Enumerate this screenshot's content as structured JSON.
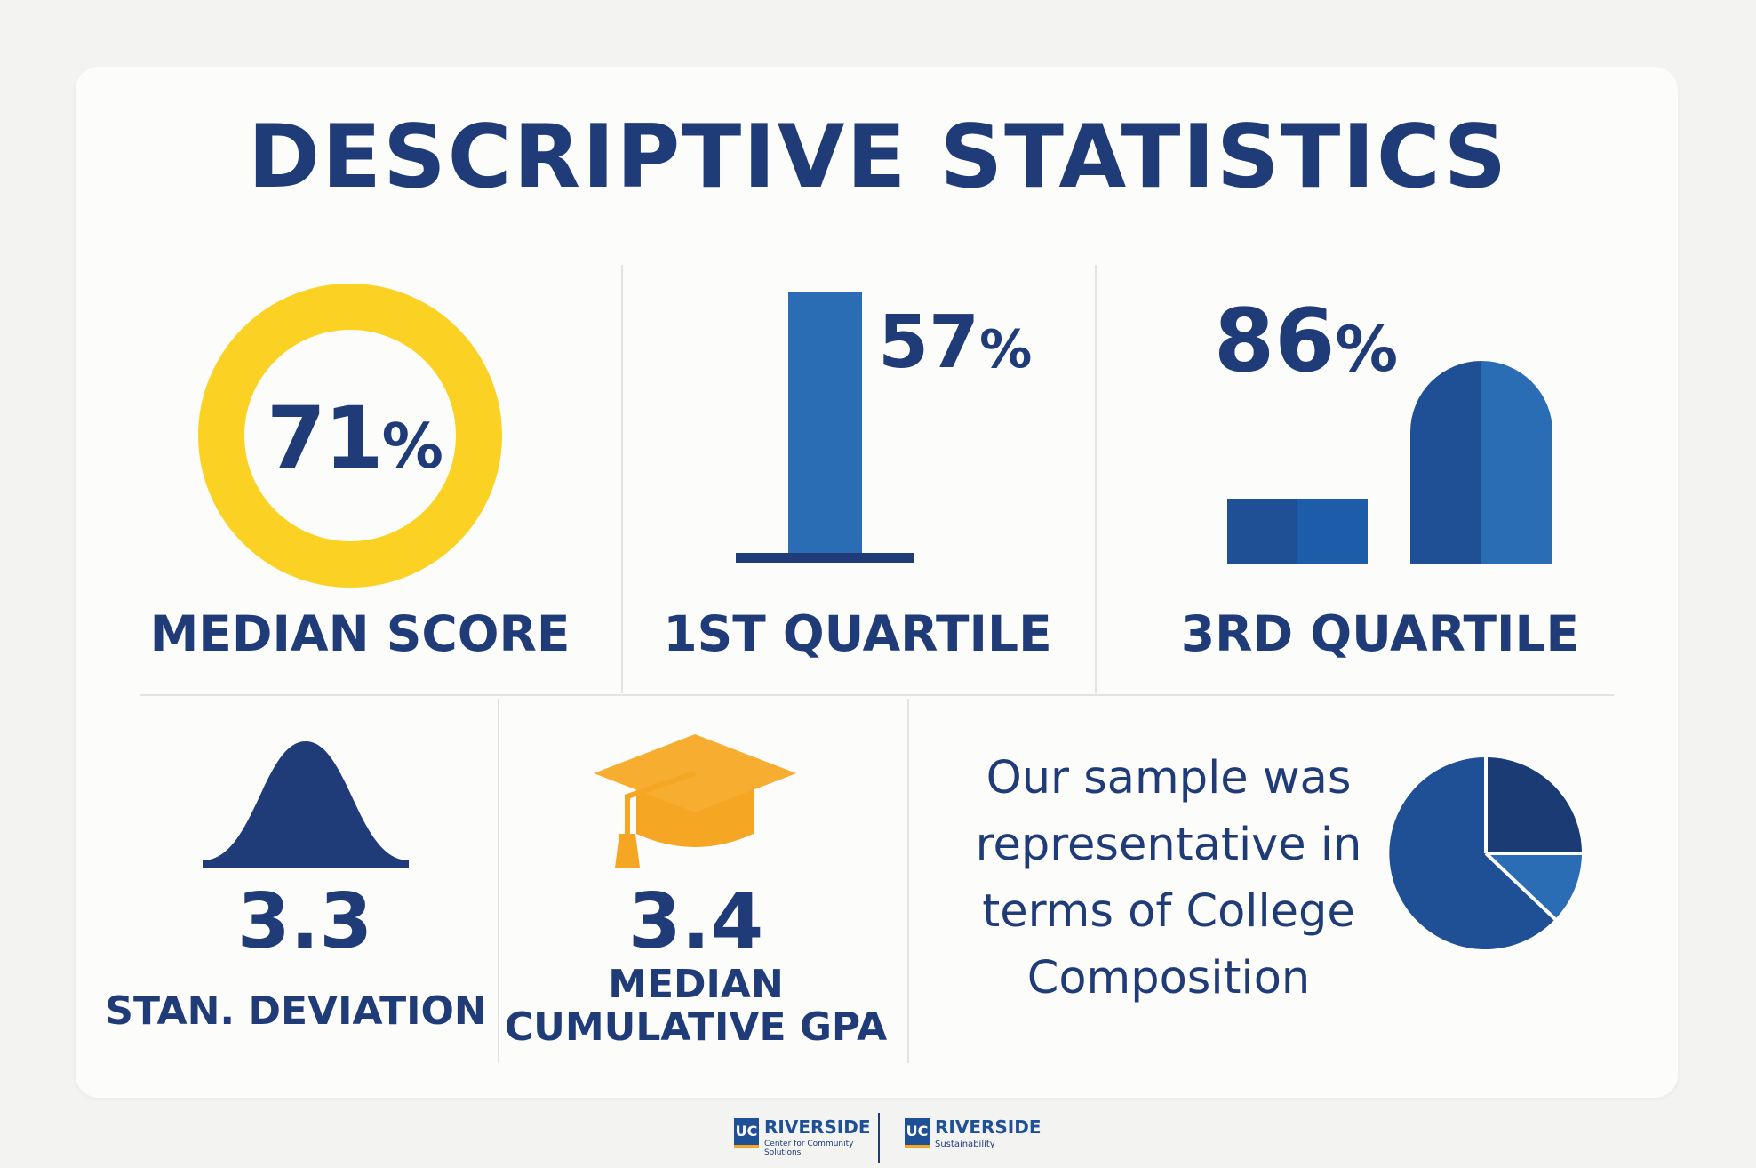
{
  "page": {
    "title": "DESCRIPTIVE STATISTICS"
  },
  "stats": {
    "median_score": {
      "value_number": "71",
      "value_sign": "%",
      "label": "MEDIAN SCORE"
    },
    "first_quartile": {
      "value_number": "57",
      "value_sign": "%",
      "label": "1ST QUARTILE"
    },
    "third_quartile": {
      "value_number": "86",
      "value_sign": "%",
      "label": "3RD QUARTILE"
    },
    "std_dev": {
      "value": "3.3",
      "label": "STAN. DEVIATION"
    },
    "gpa": {
      "value": "3.4",
      "label_line1": "MEDIAN",
      "label_line2": "CUMULATIVE GPA"
    }
  },
  "composition": {
    "text_lines": [
      "Our sample was",
      "representative in",
      "terms of College",
      "Composition"
    ]
  },
  "footer": {
    "logo1": {
      "mark": "UC",
      "name": "RIVERSIDE",
      "sub_line1": "Center for Community",
      "sub_line2": "Solutions"
    },
    "logo2": {
      "mark": "UC",
      "name": "RIVERSIDE",
      "sub_line1": "Sustainability"
    }
  },
  "colors": {
    "navy": "#1f3b78",
    "blue": "#2a6db5",
    "yellow": "#fbd224",
    "orange": "#f5a623",
    "divider": "#e3e3e0"
  },
  "icons": [
    "donut-ring-icon",
    "bar-icon",
    "bar-pair-icon",
    "bell-curve-icon",
    "graduation-cap-icon",
    "pie-chart-icon"
  ]
}
